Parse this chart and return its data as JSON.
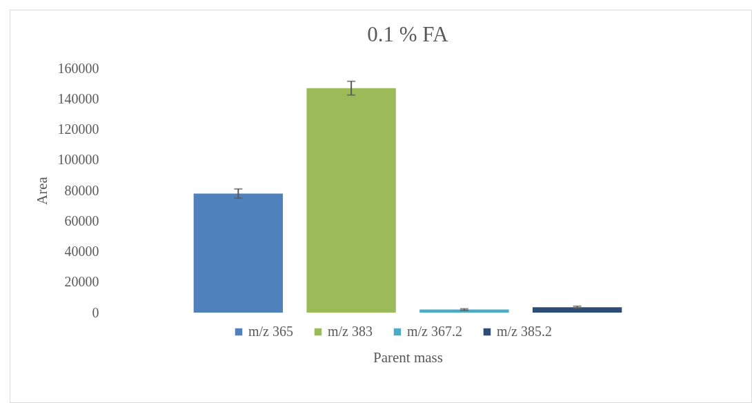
{
  "chart_data": {
    "type": "bar",
    "title": "0.1 % FA",
    "xlabel": "Parent mass",
    "ylabel": "Area",
    "categories": [
      null
    ],
    "series": [
      {
        "name": "m/z 365",
        "color": "#4f81bd",
        "values": [
          78000
        ],
        "errors": [
          3000
        ]
      },
      {
        "name": "m/z 383",
        "color": "#9bbb59",
        "values": [
          147000
        ],
        "errors": [
          4500
        ]
      },
      {
        "name": "m/z 367.2",
        "color": "#4bacc6",
        "values": [
          2000
        ],
        "errors": [
          500
        ]
      },
      {
        "name": "m/z 385.2",
        "color": "#2c4d75",
        "values": [
          3500
        ],
        "errors": [
          700
        ]
      }
    ],
    "ylim": [
      0,
      160000
    ],
    "yticks": [
      0,
      20000,
      40000,
      60000,
      80000,
      100000,
      120000,
      140000,
      160000
    ],
    "grid": false,
    "legend": "bottom"
  }
}
